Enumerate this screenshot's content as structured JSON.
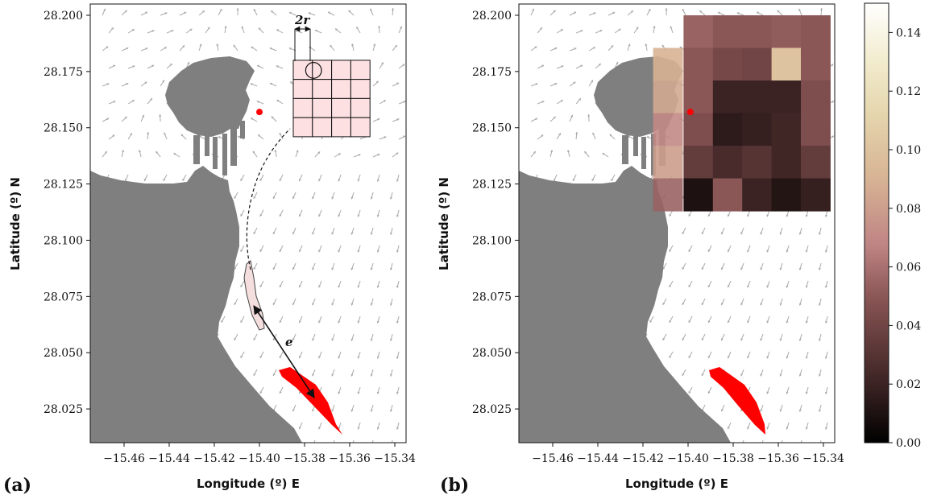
{
  "chart_data": [
    {
      "type": "heatmap",
      "panel_label": "(a)",
      "xlabel": "Longitude (º) E",
      "ylabel": "Latitude (º) N",
      "xlim": [
        -15.475,
        -15.335
      ],
      "ylim": [
        28.01,
        28.205
      ],
      "x_ticks": [
        -15.46,
        -15.44,
        -15.42,
        -15.4,
        -15.38,
        -15.36,
        -15.34
      ],
      "x_tick_labels": [
        "−15.46",
        "−15.44",
        "−15.42",
        "−15.40",
        "−15.38",
        "−15.36",
        "−15.34"
      ],
      "y_ticks": [
        28.025,
        28.05,
        28.075,
        28.1,
        28.125,
        28.15,
        28.175,
        28.2
      ],
      "y_tick_labels": [
        "28.025",
        "28.050",
        "28.075",
        "28.100",
        "28.125",
        "28.150",
        "28.175",
        "28.200"
      ],
      "annotations": [
        "2r",
        "e"
      ],
      "source_point": {
        "lon": -15.4,
        "lat": 28.157
      },
      "grid_cells": {
        "cols": 4,
        "rows": 4,
        "lon_start": -15.385,
        "lat_top": 28.18,
        "cell_lon": 0.0085,
        "cell_lat": 0.0085
      },
      "circle": {
        "lon": -15.376,
        "lat": 28.1755,
        "radius_deg": 0.0035
      }
    },
    {
      "type": "heatmap",
      "panel_label": "(b)",
      "xlabel": "Longitude (º) E",
      "ylabel": "Latitude (º) N",
      "xlim": [
        -15.475,
        -15.335
      ],
      "ylim": [
        28.01,
        28.205
      ],
      "x_ticks": [
        -15.46,
        -15.44,
        -15.42,
        -15.4,
        -15.38,
        -15.36,
        -15.34
      ],
      "x_tick_labels": [
        "−15.46",
        "−15.44",
        "−15.42",
        "−15.40",
        "−15.38",
        "−15.36",
        "−15.34"
      ],
      "y_ticks": [
        28.025,
        28.05,
        28.075,
        28.1,
        28.125,
        28.15,
        28.175,
        28.2
      ],
      "y_tick_labels": [
        "28.025",
        "28.050",
        "28.075",
        "28.100",
        "28.125",
        "28.150",
        "28.175",
        "28.200"
      ],
      "source_point": {
        "lon": -15.399,
        "lat": 28.157
      },
      "heatmap_grid": {
        "lon_start": -15.402,
        "lat_top": 28.2,
        "cell_lon": 0.013,
        "cell_lat": 0.0145
      },
      "heatmap_values": [
        [
          0.055,
          0.05,
          0.05,
          0.052,
          0.05
        ],
        [
          0.05,
          0.042,
          0.04,
          0.1,
          0.05
        ],
        [
          0.05,
          0.02,
          0.02,
          0.02,
          0.045
        ],
        [
          0.045,
          0.015,
          0.018,
          0.022,
          0.045
        ],
        [
          0.035,
          0.025,
          0.03,
          0.022,
          0.035
        ],
        [
          0.01,
          0.05,
          0.02,
          0.012,
          0.018
        ]
      ],
      "edge_cells": [
        {
          "lon": -15.4155,
          "lat": 28.1855,
          "value": 0.09
        },
        {
          "lon": -15.4155,
          "lat": 28.171,
          "value": 0.085
        },
        {
          "lon": -15.4155,
          "lat": 28.1565,
          "value": 0.07
        },
        {
          "lon": -15.4155,
          "lat": 28.142,
          "value": 0.08
        },
        {
          "lon": -15.4155,
          "lat": 28.1275,
          "value": 0.055
        }
      ],
      "colorbar": {
        "range": [
          0.0,
          0.15
        ],
        "ticks": [
          0.0,
          0.02,
          0.04,
          0.06,
          0.08,
          0.1,
          0.12,
          0.14
        ],
        "tick_labels": [
          "0.00",
          "0.02",
          "0.04",
          "0.06",
          "0.08",
          "0.10",
          "0.12",
          "0.14"
        ]
      }
    }
  ],
  "colors": {
    "land": "#7f7f7f",
    "arrows": "#a9a9a9",
    "spill": "#ff0000",
    "source": "#ff0000",
    "grid_fill": "#fde0e2",
    "trajectory_fill": "#f5dede"
  }
}
